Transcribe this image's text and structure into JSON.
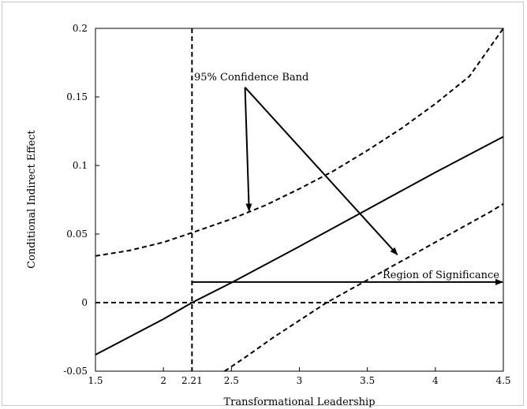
{
  "chart_data": {
    "type": "line",
    "title": "",
    "xlabel": "Transformational Leadership",
    "ylabel": "Conditional Indirect Effect",
    "xlim": [
      1.5,
      4.5
    ],
    "ylim": [
      -0.05,
      0.2
    ],
    "x_ticks": [
      {
        "value": 1.5,
        "label": "1.5"
      },
      {
        "value": 2,
        "label": "2"
      },
      {
        "value": 2.21,
        "label": "2.21"
      },
      {
        "value": 2.5,
        "label": "2.5"
      },
      {
        "value": 3,
        "label": "3"
      },
      {
        "value": 3.5,
        "label": "3.5"
      },
      {
        "value": 4,
        "label": "4"
      },
      {
        "value": 4.5,
        "label": "4.5"
      }
    ],
    "y_ticks": [
      {
        "value": -0.05,
        "label": "-0.05"
      },
      {
        "value": 0,
        "label": "0"
      },
      {
        "value": 0.05,
        "label": "0.05"
      },
      {
        "value": 0.1,
        "label": "0.1"
      },
      {
        "value": 0.15,
        "label": "0.15"
      },
      {
        "value": 0.2,
        "label": "0.2"
      }
    ],
    "grid": false,
    "legend": "none",
    "series": [
      {
        "style": "solid",
        "x": [
          1.5,
          2.0,
          2.21,
          2.5,
          3.0,
          3.5,
          4.0,
          4.5
        ],
        "y": [
          -0.038,
          -0.012,
          0.0,
          0.0145,
          0.041,
          0.068,
          0.095,
          0.121
        ]
      },
      {
        "style": "dashed",
        "x": [
          1.5,
          1.75,
          2.0,
          2.21,
          2.5,
          2.75,
          3.0,
          3.25,
          3.5,
          3.75,
          4.0,
          4.25,
          4.5
        ],
        "y": [
          0.034,
          0.038,
          0.044,
          0.051,
          0.061,
          0.071,
          0.083,
          0.096,
          0.111,
          0.127,
          0.145,
          0.165,
          0.2
        ]
      },
      {
        "style": "dashed",
        "x": [
          2.45,
          2.6,
          2.8,
          3.0,
          3.2,
          3.4,
          3.6,
          3.8,
          4.0,
          4.2,
          4.4,
          4.5
        ],
        "y": [
          -0.05,
          -0.04,
          -0.026,
          -0.013,
          0.0,
          0.011,
          0.022,
          0.033,
          0.044,
          0.055,
          0.066,
          0.072
        ]
      }
    ],
    "reference_lines": [
      {
        "orientation": "horizontal",
        "value": 0,
        "style": "dashed"
      },
      {
        "orientation": "vertical",
        "value": 2.21,
        "style": "dashed"
      }
    ],
    "annotations": [
      {
        "text": "95% Confidence Band",
        "anchor": [
          2.6,
          0.157
        ],
        "arrows_to": [
          [
            2.63,
            0.067
          ],
          [
            3.72,
            0.035
          ]
        ]
      },
      {
        "text": "Region of Significance",
        "arrow_from": [
          2.21,
          0.015
        ],
        "arrow_to": [
          4.5,
          0.015
        ]
      }
    ]
  }
}
